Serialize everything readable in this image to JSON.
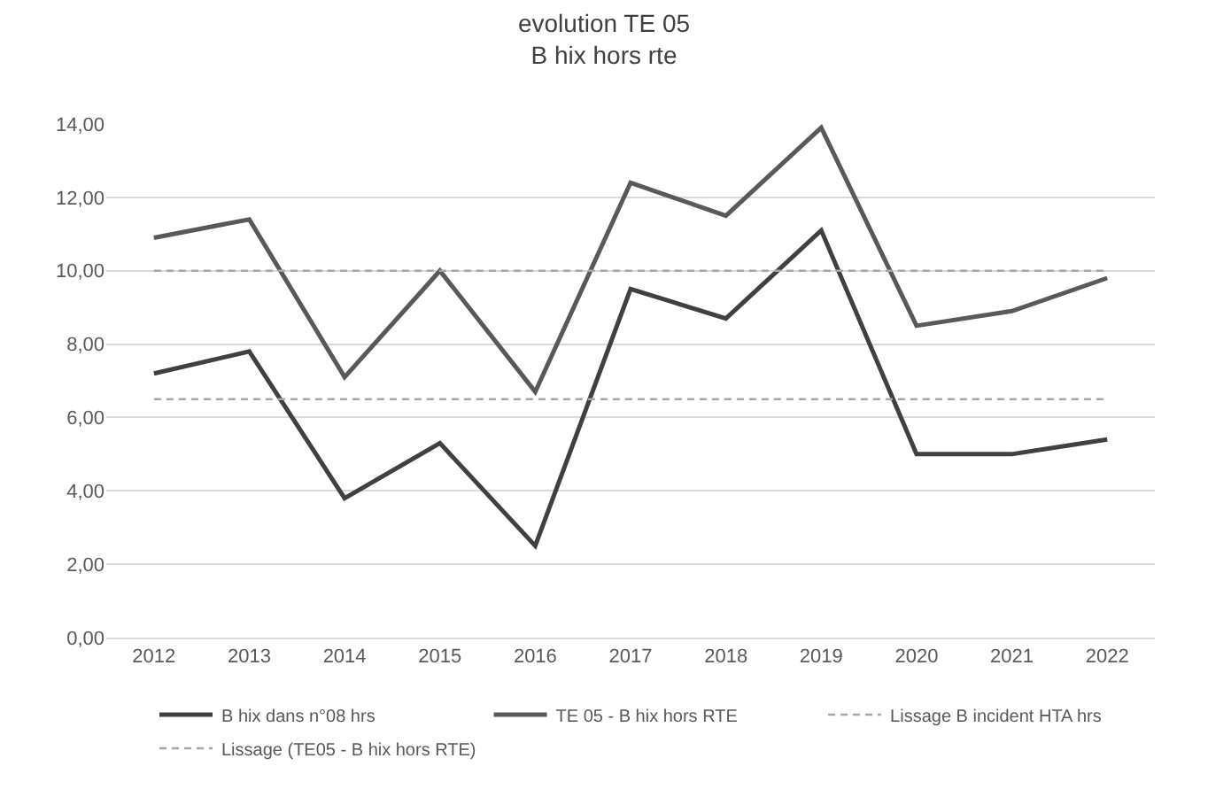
{
  "chart_data": {
    "type": "line",
    "title": "evolution TE 05",
    "subtitle": "B hix hors rte",
    "categories": [
      "2012",
      "2013",
      "2014",
      "2015",
      "2016",
      "2017",
      "2018",
      "2019",
      "2020",
      "2021",
      "2022"
    ],
    "series": [
      {
        "name": "B hix dans n°08 hrs",
        "color": "#404040",
        "line_style": "solid",
        "values": [
          7.2,
          7.8,
          3.8,
          5.3,
          2.5,
          9.5,
          8.7,
          11.1,
          5.0,
          5.0,
          5.4
        ]
      },
      {
        "name": "TE 05 - B hix hors RTE",
        "color": "#595959",
        "line_style": "solid",
        "values": [
          10.9,
          11.4,
          7.1,
          10.0,
          6.7,
          12.4,
          11.5,
          13.9,
          8.5,
          8.9,
          9.8
        ]
      },
      {
        "name": "Lissage B incident HTA hrs",
        "color": "#a6a6a6",
        "line_style": "dashed",
        "values": [
          6.5,
          6.5,
          6.5,
          6.5,
          6.5,
          6.5,
          6.5,
          6.5,
          6.5,
          6.5,
          6.5
        ]
      },
      {
        "name": "Lissage (TE05 - B hix hors RTE)",
        "color": "#a6a6a6",
        "line_style": "dashed",
        "values": [
          10.0,
          10.0,
          10.0,
          10.0,
          10.0,
          10.0,
          10.0,
          10.0,
          10.0,
          10.0,
          10.0
        ]
      }
    ],
    "ylim": [
      0,
      14
    ],
    "yticks": [
      {
        "value": 0,
        "label": "0,00"
      },
      {
        "value": 2,
        "label": "2,00"
      },
      {
        "value": 4,
        "label": "4,00"
      },
      {
        "value": 6,
        "label": "6,00"
      },
      {
        "value": 8,
        "label": "8,00"
      },
      {
        "value": 10,
        "label": "10,00"
      },
      {
        "value": 12,
        "label": "12,00"
      },
      {
        "value": 14,
        "label": "14,00"
      }
    ],
    "grid": "y",
    "legend": "bottom",
    "marker": "none"
  }
}
